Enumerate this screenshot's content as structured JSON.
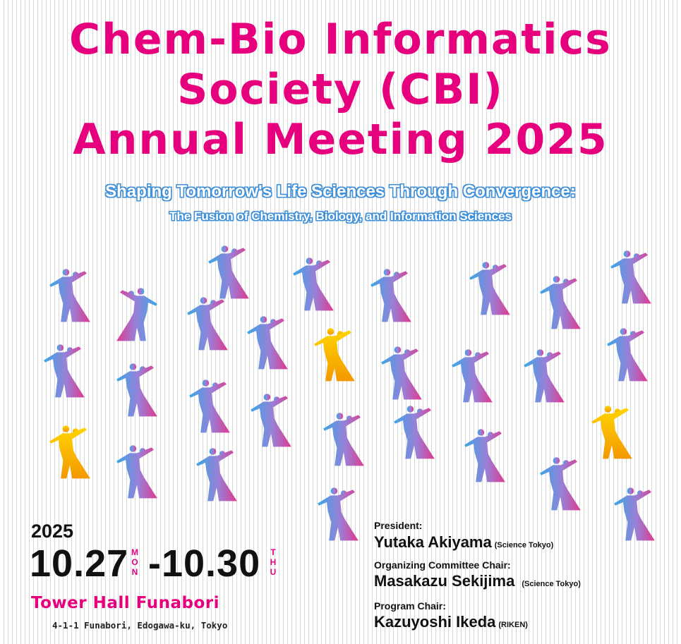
{
  "title": {
    "line1": "Chem-Bio Informatics",
    "line2": "Society (CBI)",
    "line3": "Annual Meeting 2025"
  },
  "subtitle": {
    "line1": "Shaping Tomorrow's Life Sciences Through Convergence:",
    "line2": "The Fusion of Chemistry, Biology, and Information Sciences"
  },
  "dates": {
    "year": "2025",
    "start": "10.27",
    "start_dow": "MON",
    "separator": "-",
    "end": "10.30",
    "end_dow": "THU"
  },
  "venue": {
    "name": "Tower Hall  Funabori",
    "address": "4-1-1 Funabori, Edogawa-ku, Tokyo"
  },
  "officers": [
    {
      "role": "President:",
      "name": "Yutaka Akiyama",
      "affiliation": "(Science Tokyo)"
    },
    {
      "role": "Organizing Committee Chair:",
      "name": "Masakazu Sekijima",
      "affiliation": "(Science Tokyo)"
    },
    {
      "role": "Program Chair:",
      "name": "Kazuyoshi Ikeda",
      "affiliation": "(RIKEN)"
    }
  ],
  "colors": {
    "title": "#e6007e",
    "subtitle_outline": "#3f8fd8",
    "dancer_gradient": [
      "#3aa6e8",
      "#e0388f"
    ],
    "dancer_highlight": [
      "#ffd400",
      "#f39800"
    ]
  },
  "decoration": {
    "icon": "ballroom-dancer-couple-icon"
  }
}
